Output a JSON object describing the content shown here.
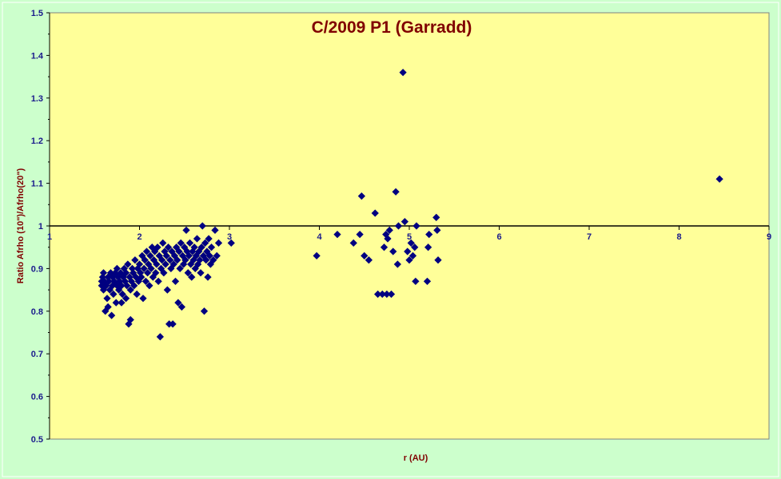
{
  "chart_data": {
    "type": "scatter",
    "title": "C/2009 P1 (Garradd)",
    "xlabel": "r (AU)",
    "ylabel": "Ratio Afrho (10\")/Afrho(20\")",
    "xlim": [
      1,
      9
    ],
    "ylim": [
      0.5,
      1.5
    ],
    "x_ticks": [
      "1",
      "2",
      "3",
      "4",
      "5",
      "6",
      "7",
      "8",
      "9"
    ],
    "y_ticks": [
      "0.5",
      "0.6",
      "0.7",
      "0.8",
      "0.9",
      "1",
      "1.1",
      "1.2",
      "1.3",
      "1.4",
      "1.5"
    ],
    "reference_line": 1,
    "grid": false,
    "legend": "none",
    "colors": {
      "plot_background": "#ffff99",
      "outer_background": "#ccffcc",
      "marker": "#000080",
      "title": "#800000",
      "tick_labels": "#1a1a8c"
    },
    "marker": "diamond",
    "series": [
      {
        "points": [
          [
            1.58,
            0.86
          ],
          [
            1.58,
            0.87
          ],
          [
            1.59,
            0.88
          ],
          [
            1.6,
            0.85
          ],
          [
            1.6,
            0.89
          ],
          [
            1.61,
            0.87
          ],
          [
            1.62,
            0.8
          ],
          [
            1.63,
            0.86
          ],
          [
            1.64,
            0.83
          ],
          [
            1.65,
            0.88
          ],
          [
            1.65,
            0.81
          ],
          [
            1.66,
            0.87
          ],
          [
            1.67,
            0.85
          ],
          [
            1.68,
            0.89
          ],
          [
            1.69,
            0.79
          ],
          [
            1.7,
            0.86
          ],
          [
            1.7,
            0.88
          ],
          [
            1.71,
            0.84
          ],
          [
            1.72,
            0.87
          ],
          [
            1.73,
            0.89
          ],
          [
            1.74,
            0.82
          ],
          [
            1.75,
            0.86
          ],
          [
            1.75,
            0.9
          ],
          [
            1.76,
            0.88
          ],
          [
            1.77,
            0.85
          ],
          [
            1.78,
            0.87
          ],
          [
            1.79,
            0.89
          ],
          [
            1.8,
            0.82
          ],
          [
            1.8,
            0.86
          ],
          [
            1.81,
            0.84
          ],
          [
            1.82,
            0.88
          ],
          [
            1.83,
            0.9
          ],
          [
            1.84,
            0.87
          ],
          [
            1.85,
            0.83
          ],
          [
            1.85,
            0.89
          ],
          [
            1.86,
            0.86
          ],
          [
            1.87,
            0.91
          ],
          [
            1.88,
            0.77
          ],
          [
            1.89,
            0.88
          ],
          [
            1.9,
            0.78
          ],
          [
            1.9,
            0.85
          ],
          [
            1.91,
            0.87
          ],
          [
            1.92,
            0.9
          ],
          [
            1.93,
            0.89
          ],
          [
            1.94,
            0.86
          ],
          [
            1.95,
            0.92
          ],
          [
            1.96,
            0.88
          ],
          [
            1.97,
            0.84
          ],
          [
            1.98,
            0.9
          ],
          [
            1.99,
            0.87
          ],
          [
            2.0,
            0.91
          ],
          [
            2.01,
            0.89
          ],
          [
            2.02,
            0.88
          ],
          [
            2.03,
            0.93
          ],
          [
            2.04,
            0.83
          ],
          [
            2.05,
            0.9
          ],
          [
            2.06,
            0.92
          ],
          [
            2.07,
            0.87
          ],
          [
            2.08,
            0.94
          ],
          [
            2.09,
            0.89
          ],
          [
            2.1,
            0.91
          ],
          [
            2.11,
            0.86
          ],
          [
            2.12,
            0.93
          ],
          [
            2.13,
            0.9
          ],
          [
            2.14,
            0.95
          ],
          [
            2.15,
            0.88
          ],
          [
            2.16,
            0.92
          ],
          [
            2.17,
            0.94
          ],
          [
            2.18,
            0.89
          ],
          [
            2.19,
            0.91
          ],
          [
            2.2,
            0.95
          ],
          [
            2.21,
            0.87
          ],
          [
            2.22,
            0.93
          ],
          [
            2.23,
            0.74
          ],
          [
            2.24,
            0.9
          ],
          [
            2.25,
            0.92
          ],
          [
            2.26,
            0.96
          ],
          [
            2.27,
            0.89
          ],
          [
            2.28,
            0.94
          ],
          [
            2.29,
            0.91
          ],
          [
            2.3,
            0.93
          ],
          [
            2.31,
            0.85
          ],
          [
            2.32,
            0.95
          ],
          [
            2.33,
            0.77
          ],
          [
            2.34,
            0.92
          ],
          [
            2.35,
            0.9
          ],
          [
            2.36,
            0.94
          ],
          [
            2.37,
            0.77
          ],
          [
            2.38,
            0.91
          ],
          [
            2.39,
            0.93
          ],
          [
            2.4,
            0.87
          ],
          [
            2.41,
            0.95
          ],
          [
            2.42,
            0.92
          ],
          [
            2.43,
            0.82
          ],
          [
            2.44,
            0.94
          ],
          [
            2.45,
            0.9
          ],
          [
            2.46,
            0.96
          ],
          [
            2.47,
            0.81
          ],
          [
            2.48,
            0.93
          ],
          [
            2.49,
            0.91
          ],
          [
            2.5,
            0.95
          ],
          [
            2.51,
            0.92
          ],
          [
            2.52,
            0.99
          ],
          [
            2.53,
            0.94
          ],
          [
            2.54,
            0.89
          ],
          [
            2.55,
            0.93
          ],
          [
            2.56,
            0.96
          ],
          [
            2.57,
            0.91
          ],
          [
            2.58,
            0.88
          ],
          [
            2.59,
            0.94
          ],
          [
            2.6,
            0.92
          ],
          [
            2.61,
            0.95
          ],
          [
            2.62,
            0.9
          ],
          [
            2.63,
            0.93
          ],
          [
            2.64,
            0.97
          ],
          [
            2.65,
            0.91
          ],
          [
            2.66,
            0.94
          ],
          [
            2.67,
            0.92
          ],
          [
            2.68,
            0.89
          ],
          [
            2.69,
            0.95
          ],
          [
            2.7,
            1.0
          ],
          [
            2.71,
            0.93
          ],
          [
            2.72,
            0.8
          ],
          [
            2.73,
            0.96
          ],
          [
            2.74,
            0.92
          ],
          [
            2.75,
            0.94
          ],
          [
            2.76,
            0.88
          ],
          [
            2.77,
            0.97
          ],
          [
            2.78,
            0.93
          ],
          [
            2.79,
            0.91
          ],
          [
            2.8,
            0.95
          ],
          [
            2.82,
            0.92
          ],
          [
            2.84,
            0.99
          ],
          [
            2.86,
            0.93
          ],
          [
            2.88,
            0.96
          ],
          [
            3.02,
            0.96
          ],
          [
            3.97,
            0.93
          ],
          [
            4.2,
            0.98
          ],
          [
            4.38,
            0.96
          ],
          [
            4.45,
            0.98
          ],
          [
            4.47,
            1.07
          ],
          [
            4.5,
            0.93
          ],
          [
            4.55,
            0.92
          ],
          [
            4.62,
            1.03
          ],
          [
            4.65,
            0.84
          ],
          [
            4.7,
            0.84
          ],
          [
            4.75,
            0.84
          ],
          [
            4.8,
            0.84
          ],
          [
            4.72,
            0.95
          ],
          [
            4.74,
            0.98
          ],
          [
            4.76,
            0.97
          ],
          [
            4.78,
            0.99
          ],
          [
            4.82,
            0.94
          ],
          [
            4.85,
            1.08
          ],
          [
            4.87,
            0.91
          ],
          [
            4.88,
            1.0
          ],
          [
            4.93,
            1.36
          ],
          [
            4.95,
            1.01
          ],
          [
            4.98,
            0.94
          ],
          [
            5.0,
            0.92
          ],
          [
            5.02,
            0.96
          ],
          [
            5.04,
            0.93
          ],
          [
            5.06,
            0.95
          ],
          [
            5.07,
            0.87
          ],
          [
            5.08,
            1.0
          ],
          [
            5.2,
            0.87
          ],
          [
            5.21,
            0.95
          ],
          [
            5.22,
            0.98
          ],
          [
            5.3,
            1.02
          ],
          [
            5.31,
            0.99
          ],
          [
            5.32,
            0.92
          ],
          [
            8.45,
            1.11
          ]
        ]
      }
    ]
  }
}
